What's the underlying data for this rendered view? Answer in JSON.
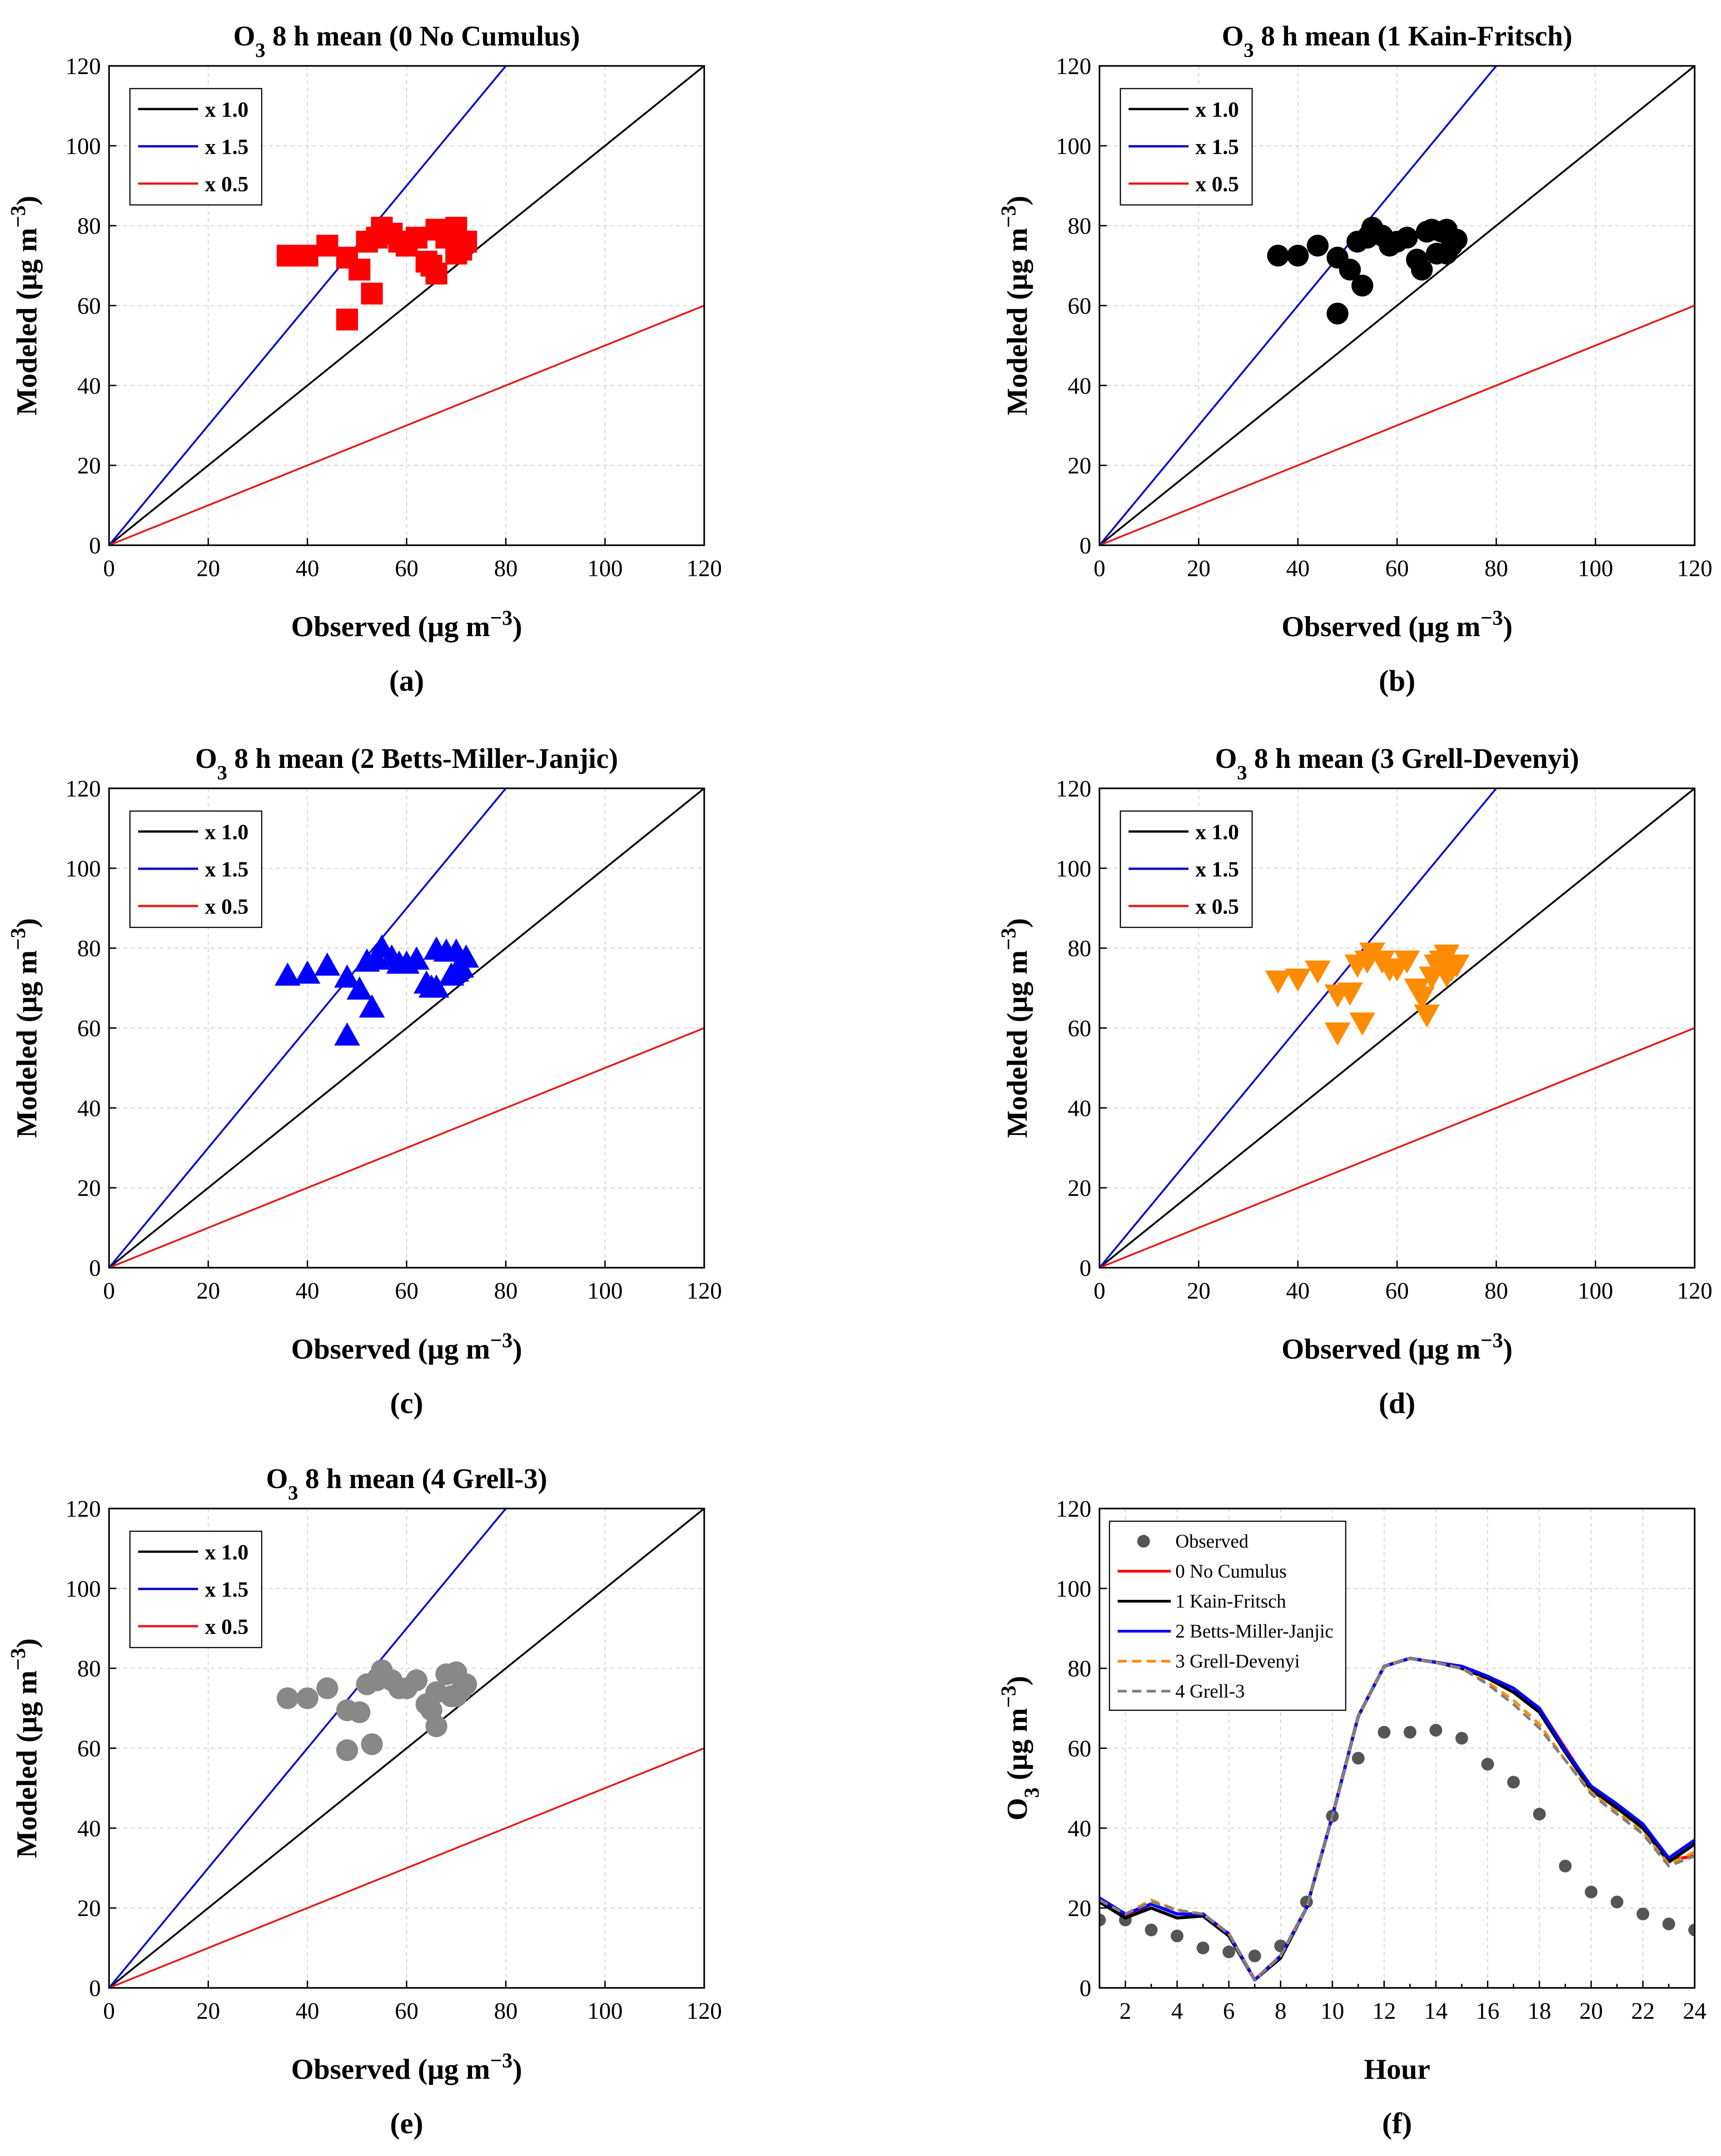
{
  "panel_labels": [
    "(a)",
    "(b)",
    "(c)",
    "(d)",
    "(e)",
    "(f)"
  ],
  "colors": {
    "ref_1_0": "#000000",
    "ref_1_5": "#0000cc",
    "ref_0_5": "#e31a1c"
  },
  "chart_data": [
    {
      "type": "scatter",
      "title": "O3 8 h mean (0 No Cumulus)",
      "xlabel": "Observed (μg m−3)",
      "ylabel": "Modeled (μg m−3)",
      "xlim": [
        0,
        120
      ],
      "ylim": [
        0,
        120
      ],
      "xticks": [
        0,
        20,
        40,
        60,
        80,
        100,
        120
      ],
      "yticks": [
        0,
        20,
        40,
        60,
        80,
        100,
        120
      ],
      "grid": true,
      "legend_position": "top-left",
      "reference_lines": [
        {
          "name": "x 1.0",
          "slope": 1.0,
          "color": "#000000"
        },
        {
          "name": "x 1.5",
          "slope": 1.5,
          "color": "#0000cc"
        },
        {
          "name": "x 0.5",
          "slope": 0.5,
          "color": "#e31a1c"
        }
      ],
      "marker": "square",
      "marker_color": "#ff0000",
      "points": [
        [
          36,
          72.5
        ],
        [
          40,
          72.5
        ],
        [
          44,
          75
        ],
        [
          48,
          72
        ],
        [
          48,
          56.5
        ],
        [
          50.5,
          69
        ],
        [
          52,
          76
        ],
        [
          53,
          63
        ],
        [
          54,
          77
        ],
        [
          55,
          79.5
        ],
        [
          57,
          78
        ],
        [
          58.5,
          76
        ],
        [
          60,
          75
        ],
        [
          62,
          77
        ],
        [
          64,
          71
        ],
        [
          65,
          70
        ],
        [
          66,
          68
        ],
        [
          66,
          79
        ],
        [
          68,
          77
        ],
        [
          69,
          78.5
        ],
        [
          70,
          79.5
        ],
        [
          70,
          73
        ],
        [
          72,
          76
        ],
        [
          71,
          74
        ]
      ]
    },
    {
      "type": "scatter",
      "title": "O3 8 h mean (1 Kain-Fritsch)",
      "xlabel": "Observed (μg m−3)",
      "ylabel": "Modeled (μg m−3)",
      "xlim": [
        0,
        120
      ],
      "ylim": [
        0,
        120
      ],
      "xticks": [
        0,
        20,
        40,
        60,
        80,
        100,
        120
      ],
      "yticks": [
        0,
        20,
        40,
        60,
        80,
        100,
        120
      ],
      "grid": true,
      "legend_position": "top-left",
      "reference_lines": [
        {
          "name": "x 1.0",
          "slope": 1.0,
          "color": "#000000"
        },
        {
          "name": "x 1.5",
          "slope": 1.5,
          "color": "#0000cc"
        },
        {
          "name": "x 0.5",
          "slope": 0.5,
          "color": "#e31a1c"
        }
      ],
      "marker": "circle",
      "marker_color": "#000000",
      "points": [
        [
          36,
          72.5
        ],
        [
          40,
          72.5
        ],
        [
          44,
          75
        ],
        [
          48,
          72
        ],
        [
          48,
          58
        ],
        [
          50.5,
          69
        ],
        [
          52,
          76
        ],
        [
          53,
          65
        ],
        [
          54,
          77
        ],
        [
          55,
          79.5
        ],
        [
          57,
          77.5
        ],
        [
          58.5,
          75
        ],
        [
          60,
          76
        ],
        [
          62,
          77
        ],
        [
          64,
          71.5
        ],
        [
          65,
          69
        ],
        [
          66,
          78.5
        ],
        [
          67,
          79
        ],
        [
          68,
          73
        ],
        [
          69,
          78.5
        ],
        [
          70,
          79
        ],
        [
          70,
          73
        ],
        [
          72,
          76.5
        ],
        [
          71,
          75
        ]
      ]
    },
    {
      "type": "scatter",
      "title": "O3 8 h mean (2 Betts-Miller-Janjic)",
      "xlabel": "Observed (μg m−3)",
      "ylabel": "Modeled (μg m−3)",
      "xlim": [
        0,
        120
      ],
      "ylim": [
        0,
        120
      ],
      "xticks": [
        0,
        20,
        40,
        60,
        80,
        100,
        120
      ],
      "yticks": [
        0,
        20,
        40,
        60,
        80,
        100,
        120
      ],
      "grid": true,
      "legend_position": "top-left",
      "reference_lines": [
        {
          "name": "x 1.0",
          "slope": 1.0,
          "color": "#000000"
        },
        {
          "name": "x 1.5",
          "slope": 1.5,
          "color": "#0000cc"
        },
        {
          "name": "x 0.5",
          "slope": 0.5,
          "color": "#e31a1c"
        }
      ],
      "marker": "triangle-up",
      "marker_color": "#0000ff",
      "points": [
        [
          36,
          73
        ],
        [
          40,
          73.5
        ],
        [
          44,
          75.5
        ],
        [
          48,
          72.5
        ],
        [
          48,
          58
        ],
        [
          50.5,
          69.5
        ],
        [
          52,
          76.5
        ],
        [
          53,
          65
        ],
        [
          54,
          77
        ],
        [
          55,
          80
        ],
        [
          57,
          77.5
        ],
        [
          58.5,
          76
        ],
        [
          60,
          76
        ],
        [
          62,
          77
        ],
        [
          64,
          71
        ],
        [
          65,
          70
        ],
        [
          66,
          79.5
        ],
        [
          66,
          70
        ],
        [
          68,
          79
        ],
        [
          69,
          73
        ],
        [
          70,
          79
        ],
        [
          70,
          74
        ],
        [
          72,
          77.5
        ],
        [
          71,
          75
        ]
      ]
    },
    {
      "type": "scatter",
      "title": "O3 8 h mean (3 Grell-Devenyi)",
      "xlabel": "Observed (μg m−3)",
      "ylabel": "Modeled (μg m−3)",
      "xlim": [
        0,
        120
      ],
      "ylim": [
        0,
        120
      ],
      "xticks": [
        0,
        20,
        40,
        60,
        80,
        100,
        120
      ],
      "yticks": [
        0,
        20,
        40,
        60,
        80,
        100,
        120
      ],
      "grid": true,
      "legend_position": "top-left",
      "reference_lines": [
        {
          "name": "x 1.0",
          "slope": 1.0,
          "color": "#000000"
        },
        {
          "name": "x 1.5",
          "slope": 1.5,
          "color": "#0000cc"
        },
        {
          "name": "x 0.5",
          "slope": 0.5,
          "color": "#e31a1c"
        }
      ],
      "marker": "triangle-down",
      "marker_color": "#ff8c00",
      "points": [
        [
          36,
          72
        ],
        [
          40,
          72.5
        ],
        [
          44,
          74.5
        ],
        [
          48,
          68.5
        ],
        [
          48,
          59
        ],
        [
          50.5,
          69
        ],
        [
          52,
          76
        ],
        [
          53,
          61.5
        ],
        [
          54,
          77
        ],
        [
          55,
          79
        ],
        [
          57,
          77
        ],
        [
          58.5,
          75
        ],
        [
          60,
          75
        ],
        [
          62,
          77
        ],
        [
          64,
          70
        ],
        [
          65,
          68
        ],
        [
          66,
          63.5
        ],
        [
          67,
          73
        ],
        [
          68,
          76
        ],
        [
          69,
          77
        ],
        [
          70,
          78.5
        ],
        [
          70,
          73.5
        ],
        [
          72,
          76
        ],
        [
          71,
          75
        ]
      ]
    },
    {
      "type": "scatter",
      "title": "O3 8 h mean (4 Grell-3)",
      "xlabel": "Observed (μg m−3)",
      "ylabel": "Modeled (μg m−3)",
      "xlim": [
        0,
        120
      ],
      "ylim": [
        0,
        120
      ],
      "xticks": [
        0,
        20,
        40,
        60,
        80,
        100,
        120
      ],
      "yticks": [
        0,
        20,
        40,
        60,
        80,
        100,
        120
      ],
      "grid": true,
      "legend_position": "top-left",
      "reference_lines": [
        {
          "name": "x 1.0",
          "slope": 1.0,
          "color": "#000000"
        },
        {
          "name": "x 1.5",
          "slope": 1.5,
          "color": "#0000cc"
        },
        {
          "name": "x 0.5",
          "slope": 0.5,
          "color": "#e31a1c"
        }
      ],
      "marker": "circle",
      "marker_color": "#888888",
      "points": [
        [
          36,
          72.5
        ],
        [
          40,
          72.5
        ],
        [
          44,
          75
        ],
        [
          48,
          69.5
        ],
        [
          48,
          59.5
        ],
        [
          50.5,
          69
        ],
        [
          52,
          76
        ],
        [
          53,
          61
        ],
        [
          54,
          77
        ],
        [
          55,
          79.5
        ],
        [
          57,
          77
        ],
        [
          58.5,
          75
        ],
        [
          60,
          75
        ],
        [
          62,
          77
        ],
        [
          64,
          71
        ],
        [
          65,
          69.5
        ],
        [
          66,
          65.5
        ],
        [
          66,
          74
        ],
        [
          68,
          78.5
        ],
        [
          69,
          73
        ],
        [
          70,
          79
        ],
        [
          70,
          73
        ],
        [
          72,
          76
        ],
        [
          71,
          74.5
        ]
      ]
    },
    {
      "type": "line",
      "title": "",
      "xlabel": "Hour",
      "ylabel": "O3 (μg m−3)",
      "xlim": [
        1,
        24
      ],
      "ylim": [
        0,
        120
      ],
      "xticks": [
        2,
        4,
        6,
        8,
        10,
        12,
        14,
        16,
        18,
        20,
        22,
        24
      ],
      "yticks": [
        0,
        20,
        40,
        60,
        80,
        100,
        120
      ],
      "grid": true,
      "legend_position": "top-left",
      "x": [
        1,
        2,
        3,
        4,
        5,
        6,
        7,
        8,
        9,
        10,
        11,
        12,
        13,
        14,
        15,
        16,
        17,
        18,
        19,
        20,
        21,
        22,
        23,
        24
      ],
      "series": [
        {
          "name": "Observed",
          "style": "dots",
          "color": "#555555",
          "values": [
            17,
            17,
            14.5,
            13,
            10,
            9,
            8,
            10.5,
            21.5,
            43,
            57.5,
            64,
            64,
            64.5,
            62.5,
            56,
            51.5,
            43.5,
            30.5,
            24,
            21.5,
            18.5,
            16,
            14.5
          ]
        },
        {
          "name": "0 No Cumulus",
          "style": "solid",
          "color": "#ff0000",
          "values": [
            22,
            18,
            21,
            18.5,
            18.5,
            13.5,
            2,
            8,
            20,
            43,
            68,
            80.5,
            82.5,
            81.5,
            80.5,
            78,
            75,
            70,
            60,
            50,
            45.5,
            40.5,
            32,
            33
          ]
        },
        {
          "name": "1 Kain-Fritsch",
          "style": "solid",
          "color": "#000000",
          "values": [
            21.5,
            17.5,
            20,
            17.5,
            18,
            13,
            2,
            7.5,
            20,
            43,
            68,
            80.5,
            82.5,
            81.5,
            80,
            77.5,
            74,
            69,
            59,
            49.5,
            45,
            40,
            31.5,
            36
          ]
        },
        {
          "name": "2 Betts-Miller-Janjic",
          "style": "solid",
          "color": "#0000ff",
          "values": [
            22.5,
            18.5,
            21,
            18.5,
            18.5,
            13.5,
            2,
            8,
            20,
            43,
            68,
            80.5,
            82.5,
            81.5,
            80.5,
            78,
            75,
            70,
            59.5,
            50.5,
            46,
            41,
            32.5,
            37
          ]
        },
        {
          "name": "3 Grell-Devenyi",
          "style": "dashed",
          "color": "#ff8c00",
          "values": [
            22,
            18.5,
            22,
            19.5,
            18.5,
            13.5,
            2,
            8,
            20,
            43,
            68,
            80.5,
            82.5,
            81.5,
            80,
            76.5,
            72,
            66,
            57,
            49,
            44,
            39,
            31,
            34
          ]
        },
        {
          "name": "4 Grell-3",
          "style": "dashed",
          "color": "#808080",
          "values": [
            22,
            18.5,
            21.5,
            19.5,
            18.5,
            13.5,
            2,
            8,
            20,
            43,
            68,
            80.5,
            82.5,
            81.5,
            80,
            76,
            71,
            65,
            57,
            48.5,
            43.5,
            38.5,
            30.5,
            33
          ]
        }
      ]
    }
  ]
}
